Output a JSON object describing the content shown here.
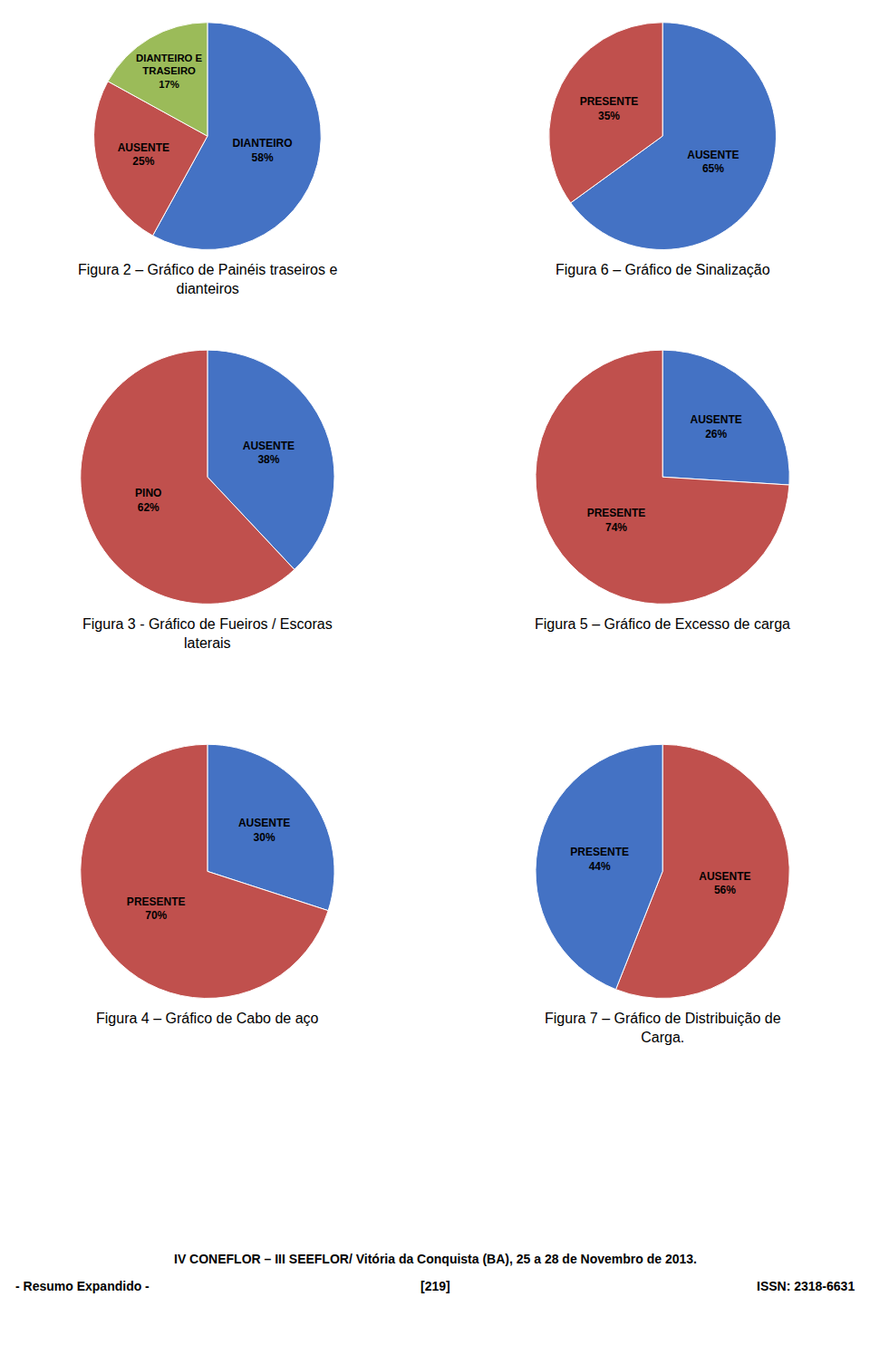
{
  "chart_data": [
    {
      "type": "pie",
      "title": "Figura 2 – Gráfico de Painéis traseiros e\ndianteiros",
      "categories": [
        "DIANTEIRO",
        "AUSENTE",
        "DIANTEIRO E\nTRASEIRO"
      ],
      "values": [
        58,
        25,
        17
      ],
      "value_labels": [
        "58%",
        "25%",
        "17%"
      ],
      "colors": [
        "#4472C4",
        "#C0504D",
        "#9BBB59"
      ],
      "data_labels": true
    },
    {
      "type": "pie",
      "title": "Figura 6 – Gráfico de Sinalização",
      "categories": [
        "AUSENTE",
        "PRESENTE"
      ],
      "values": [
        65,
        35
      ],
      "value_labels": [
        "65%",
        "35%"
      ],
      "colors": [
        "#4472C4",
        "#C0504D"
      ],
      "data_labels": true
    },
    {
      "type": "pie",
      "title": "Figura 3 - Gráfico de Fueiros / Escoras\nlaterais",
      "categories": [
        "AUSENTE",
        "PINO"
      ],
      "values": [
        38,
        62
      ],
      "value_labels": [
        "38%",
        "62%"
      ],
      "colors": [
        "#4472C4",
        "#C0504D"
      ],
      "data_labels": true
    },
    {
      "type": "pie",
      "title": "Figura 5 – Gráfico de Excesso de carga",
      "categories": [
        "AUSENTE",
        "PRESENTE"
      ],
      "values": [
        26,
        74
      ],
      "value_labels": [
        "26%",
        "74%"
      ],
      "colors": [
        "#4472C4",
        "#C0504D"
      ],
      "data_labels": true
    },
    {
      "type": "pie",
      "title": "Figura 4 – Gráfico de Cabo de aço",
      "categories": [
        "AUSENTE",
        "PRESENTE"
      ],
      "values": [
        30,
        70
      ],
      "value_labels": [
        "30%",
        "70%"
      ],
      "colors": [
        "#4472C4",
        "#C0504D"
      ],
      "data_labels": true
    },
    {
      "type": "pie",
      "title": "Figura 7 – Gráfico de Distribuição de\nCarga.",
      "categories": [
        "AUSENTE",
        "PRESENTE"
      ],
      "values": [
        56,
        44
      ],
      "value_labels": [
        "56%",
        "44%"
      ],
      "colors": [
        "#C0504D",
        "#4472C4"
      ],
      "data_labels": true
    }
  ],
  "annotations": [
    "IV CONEFLOR – III SEEFLOR/ Vitória da Conquista (BA), 25 a 28 de Novembro de 2013.",
    "- Resumo Expandido -",
    "[219]",
    "ISSN: 2318-6631"
  ]
}
